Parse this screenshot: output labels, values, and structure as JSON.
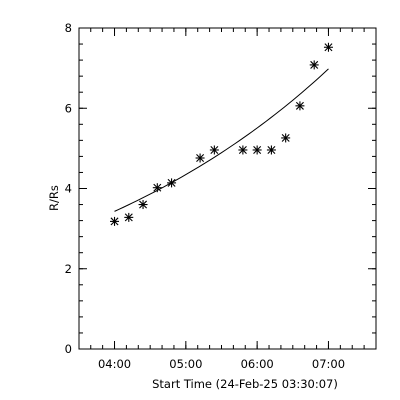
{
  "chart_data": {
    "type": "scatter",
    "xlabel": "Start Time (24-Feb-25 03:30:07)",
    "ylabel": "R/Rs",
    "xlim": [
      "03:30:07",
      "07:40:00"
    ],
    "ylim": [
      0,
      8
    ],
    "x_ticks": [
      "04:00",
      "05:00",
      "06:00",
      "07:00"
    ],
    "x_minor_tick_step_minutes": 10,
    "y_ticks": [
      0,
      2,
      4,
      6,
      8
    ],
    "y_minor_tick_step": 0.4,
    "grid": false,
    "series": [
      {
        "marker": "asterisk",
        "x": [
          "04:00",
          "04:12",
          "04:24",
          "04:36",
          "04:48",
          "05:12",
          "05:24",
          "05:48",
          "06:00",
          "06:12",
          "06:24",
          "06:36",
          "06:48",
          "07:00"
        ],
        "y": [
          3.18,
          3.28,
          3.6,
          4.02,
          4.14,
          4.76,
          4.96,
          4.96,
          4.96,
          4.96,
          5.26,
          6.06,
          7.08,
          7.52
        ]
      }
    ],
    "fit_line": {
      "x": [
        "04:00",
        "07:00"
      ],
      "y": [
        3.43,
        6.98
      ]
    },
    "x_tick_labels": [
      "04:00",
      "05:00",
      "06:00",
      "07:00"
    ],
    "y_tick_labels": [
      "0",
      "2",
      "4",
      "6",
      "8"
    ]
  }
}
